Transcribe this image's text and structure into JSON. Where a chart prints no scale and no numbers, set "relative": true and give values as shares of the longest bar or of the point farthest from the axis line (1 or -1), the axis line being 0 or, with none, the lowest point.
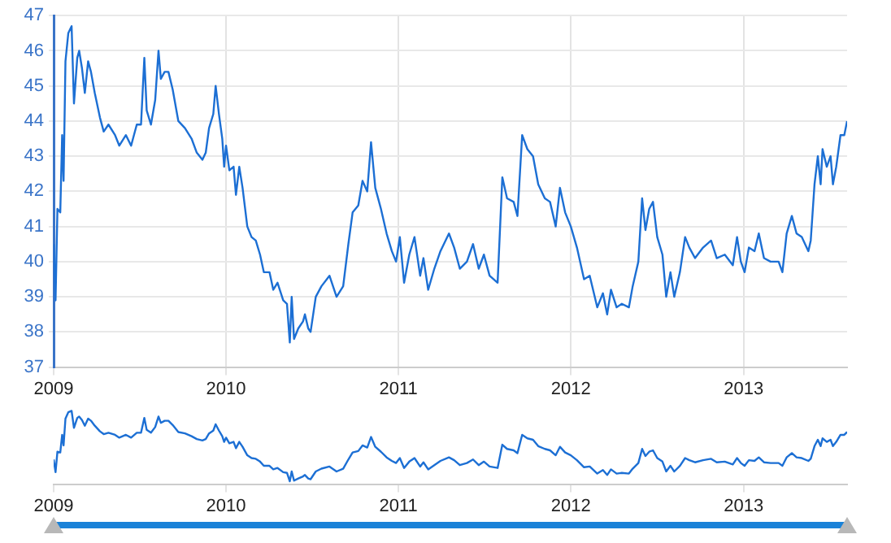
{
  "chart_data": [
    {
      "type": "line",
      "xlim": [
        "2009-01-01",
        "2013-08-08"
      ],
      "ylim": [
        37,
        47
      ],
      "yticks": [
        37,
        38,
        39,
        40,
        41,
        42,
        43,
        44,
        45,
        46,
        47
      ],
      "grid": true,
      "legend": false,
      "marker": "none",
      "xticks": [
        {
          "value": "2009-01-01",
          "label": "2009"
        },
        {
          "value": "2010-01-01",
          "label": "2010"
        },
        {
          "value": "2011-01-01",
          "label": "2011"
        },
        {
          "value": "2012-01-01",
          "label": "2012"
        },
        {
          "value": "2013-01-01",
          "label": "2013"
        }
      ],
      "x": [
        "2009-01-01",
        "2009-01-05",
        "2009-01-09",
        "2009-01-15",
        "2009-01-19",
        "2009-01-22",
        "2009-01-26",
        "2009-02-01",
        "2009-02-08",
        "2009-02-13",
        "2009-02-20",
        "2009-02-24",
        "2009-03-02",
        "2009-03-08",
        "2009-03-15",
        "2009-03-21",
        "2009-03-29",
        "2009-04-09",
        "2009-04-17",
        "2009-04-27",
        "2009-05-11",
        "2009-05-20",
        "2009-06-03",
        "2009-06-14",
        "2009-06-26",
        "2009-07-05",
        "2009-07-12",
        "2009-07-17",
        "2009-07-26",
        "2009-08-04",
        "2009-08-11",
        "2009-08-16",
        "2009-08-24",
        "2009-09-01",
        "2009-09-10",
        "2009-09-22",
        "2009-10-06",
        "2009-10-20",
        "2009-10-31",
        "2009-11-12",
        "2009-11-19",
        "2009-11-26",
        "2009-12-05",
        "2009-12-10",
        "2009-12-17",
        "2009-12-24",
        "2009-12-28",
        "2010-01-01",
        "2010-01-08",
        "2010-01-17",
        "2010-01-22",
        "2010-01-29",
        "2010-02-05",
        "2010-02-15",
        "2010-02-24",
        "2010-03-05",
        "2010-03-14",
        "2010-03-22",
        "2010-04-03",
        "2010-04-11",
        "2010-04-20",
        "2010-05-02",
        "2010-05-10",
        "2010-05-16",
        "2010-05-20",
        "2010-05-25",
        "2010-06-03",
        "2010-06-13",
        "2010-06-17",
        "2010-06-24",
        "2010-06-29",
        "2010-07-10",
        "2010-07-22",
        "2010-08-08",
        "2010-08-23",
        "2010-09-06",
        "2010-09-17",
        "2010-09-26",
        "2010-10-08",
        "2010-10-17",
        "2010-10-27",
        "2010-11-04",
        "2010-11-13",
        "2010-11-25",
        "2010-12-07",
        "2010-12-18",
        "2010-12-27",
        "2011-01-04",
        "2011-01-13",
        "2011-01-24",
        "2011-02-04",
        "2011-02-16",
        "2011-02-23",
        "2011-03-05",
        "2011-03-18",
        "2011-03-31",
        "2011-04-18",
        "2011-04-29",
        "2011-05-11",
        "2011-05-26",
        "2011-06-08",
        "2011-06-20",
        "2011-07-01",
        "2011-07-13",
        "2011-07-30",
        "2011-08-09",
        "2011-08-19",
        "2011-09-02",
        "2011-09-10",
        "2011-09-20",
        "2011-10-01",
        "2011-10-13",
        "2011-10-24",
        "2011-11-07",
        "2011-11-18",
        "2011-11-30",
        "2011-12-09",
        "2011-12-20",
        "2012-01-01",
        "2012-01-14",
        "2012-01-29",
        "2012-02-10",
        "2012-02-26",
        "2012-03-09",
        "2012-03-18",
        "2012-03-26",
        "2012-04-07",
        "2012-04-18",
        "2012-05-03",
        "2012-05-11",
        "2012-05-23",
        "2012-05-31",
        "2012-06-07",
        "2012-06-15",
        "2012-06-23",
        "2012-07-02",
        "2012-07-13",
        "2012-07-21",
        "2012-07-30",
        "2012-08-07",
        "2012-08-19",
        "2012-08-30",
        "2012-09-08",
        "2012-09-20",
        "2012-10-07",
        "2012-10-24",
        "2012-11-05",
        "2012-11-22",
        "2012-12-09",
        "2012-12-18",
        "2012-12-26",
        "2013-01-03",
        "2013-01-12",
        "2013-01-24",
        "2013-02-02",
        "2013-02-13",
        "2013-02-27",
        "2013-03-16",
        "2013-03-24",
        "2013-04-02",
        "2013-04-13",
        "2013-04-23",
        "2013-05-04",
        "2013-05-18",
        "2013-05-23",
        "2013-05-31",
        "2013-06-07",
        "2013-06-13",
        "2013-06-17",
        "2013-06-26",
        "2013-07-04",
        "2013-07-09",
        "2013-07-16",
        "2013-07-25",
        "2013-08-02",
        "2013-08-08"
      ],
      "series": [
        {
          "color": "#1c6fd4",
          "values": [
            40.5,
            38.9,
            41.5,
            41.4,
            43.6,
            42.3,
            45.7,
            46.5,
            46.7,
            44.5,
            45.8,
            46.0,
            45.5,
            44.8,
            45.7,
            45.4,
            44.8,
            44.1,
            43.7,
            43.9,
            43.6,
            43.3,
            43.6,
            43.3,
            43.9,
            43.9,
            45.8,
            44.3,
            43.9,
            44.6,
            46.0,
            45.2,
            45.4,
            45.4,
            44.9,
            44.0,
            43.8,
            43.5,
            43.1,
            42.9,
            43.1,
            43.8,
            44.2,
            45.0,
            44.2,
            43.5,
            42.7,
            43.3,
            42.6,
            42.7,
            41.9,
            42.7,
            42.1,
            41.0,
            40.7,
            40.6,
            40.2,
            39.7,
            39.7,
            39.2,
            39.4,
            38.9,
            38.8,
            37.7,
            39.0,
            37.8,
            38.1,
            38.3,
            38.5,
            38.1,
            38.0,
            39.0,
            39.3,
            39.6,
            39.0,
            39.3,
            40.5,
            41.4,
            41.6,
            42.3,
            42.0,
            43.4,
            42.1,
            41.5,
            40.8,
            40.3,
            40.0,
            40.7,
            39.4,
            40.2,
            40.7,
            39.6,
            40.1,
            39.2,
            39.8,
            40.3,
            40.8,
            40.4,
            39.8,
            40.0,
            40.5,
            39.8,
            40.2,
            39.6,
            39.4,
            42.4,
            41.8,
            41.7,
            41.3,
            43.6,
            43.2,
            43.0,
            42.2,
            41.8,
            41.7,
            41.0,
            42.1,
            41.4,
            41.0,
            40.4,
            39.5,
            39.6,
            38.7,
            39.1,
            38.5,
            39.2,
            38.7,
            38.8,
            38.7,
            39.3,
            40.0,
            41.8,
            40.9,
            41.5,
            41.7,
            40.7,
            40.2,
            39.0,
            39.7,
            39.0,
            39.7,
            40.7,
            40.4,
            40.1,
            40.4,
            40.6,
            40.1,
            40.2,
            39.9,
            40.7,
            40.0,
            39.7,
            40.4,
            40.3,
            40.8,
            40.1,
            40.0,
            40.0,
            39.7,
            40.8,
            41.3,
            40.8,
            40.7,
            40.3,
            40.6,
            42.2,
            43.0,
            42.2,
            43.2,
            42.7,
            43.0,
            42.2,
            42.7,
            43.6,
            43.6,
            44.0
          ]
        }
      ]
    },
    {
      "type": "line",
      "relative": true,
      "xlim": [
        "2009-01-01",
        "2013-08-08"
      ],
      "legend": false,
      "marker": "none",
      "tick_labels": "x",
      "xticks": [
        {
          "value": "2009-01-01",
          "label": "2009"
        },
        {
          "value": "2010-01-01",
          "label": "2010"
        },
        {
          "value": "2011-01-01",
          "label": "2011"
        },
        {
          "value": "2012-01-01",
          "label": "2012"
        },
        {
          "value": "2013-01-01",
          "label": "2013"
        }
      ],
      "x": [
        "2009-01-01",
        "2009-01-05",
        "2009-01-09",
        "2009-01-15",
        "2009-01-19",
        "2009-01-22",
        "2009-01-26",
        "2009-02-01",
        "2009-02-08",
        "2009-02-13",
        "2009-02-20",
        "2009-02-24",
        "2009-03-02",
        "2009-03-08",
        "2009-03-15",
        "2009-03-21",
        "2009-03-29",
        "2009-04-09",
        "2009-04-17",
        "2009-04-27",
        "2009-05-11",
        "2009-05-20",
        "2009-06-03",
        "2009-06-14",
        "2009-06-26",
        "2009-07-05",
        "2009-07-12",
        "2009-07-17",
        "2009-07-26",
        "2009-08-04",
        "2009-08-11",
        "2009-08-16",
        "2009-08-24",
        "2009-09-01",
        "2009-09-10",
        "2009-09-22",
        "2009-10-06",
        "2009-10-20",
        "2009-10-31",
        "2009-11-12",
        "2009-11-19",
        "2009-11-26",
        "2009-12-05",
        "2009-12-10",
        "2009-12-17",
        "2009-12-24",
        "2009-12-28",
        "2010-01-01",
        "2010-01-08",
        "2010-01-17",
        "2010-01-22",
        "2010-01-29",
        "2010-02-05",
        "2010-02-15",
        "2010-02-24",
        "2010-03-05",
        "2010-03-14",
        "2010-03-22",
        "2010-04-03",
        "2010-04-11",
        "2010-04-20",
        "2010-05-02",
        "2010-05-10",
        "2010-05-16",
        "2010-05-20",
        "2010-05-25",
        "2010-06-03",
        "2010-06-13",
        "2010-06-17",
        "2010-06-24",
        "2010-06-29",
        "2010-07-10",
        "2010-07-22",
        "2010-08-08",
        "2010-08-23",
        "2010-09-06",
        "2010-09-17",
        "2010-09-26",
        "2010-10-08",
        "2010-10-17",
        "2010-10-27",
        "2010-11-04",
        "2010-11-13",
        "2010-11-25",
        "2010-12-07",
        "2010-12-18",
        "2010-12-27",
        "2011-01-04",
        "2011-01-13",
        "2011-01-24",
        "2011-02-04",
        "2011-02-16",
        "2011-02-23",
        "2011-03-05",
        "2011-03-18",
        "2011-03-31",
        "2011-04-18",
        "2011-04-29",
        "2011-05-11",
        "2011-05-26",
        "2011-06-08",
        "2011-06-20",
        "2011-07-01",
        "2011-07-13",
        "2011-07-30",
        "2011-08-09",
        "2011-08-19",
        "2011-09-02",
        "2011-09-10",
        "2011-09-20",
        "2011-10-01",
        "2011-10-13",
        "2011-10-24",
        "2011-11-07",
        "2011-11-18",
        "2011-11-30",
        "2011-12-09",
        "2011-12-20",
        "2012-01-01",
        "2012-01-14",
        "2012-01-29",
        "2012-02-10",
        "2012-02-26",
        "2012-03-09",
        "2012-03-18",
        "2012-03-26",
        "2012-04-07",
        "2012-04-18",
        "2012-05-03",
        "2012-05-11",
        "2012-05-23",
        "2012-05-31",
        "2012-06-07",
        "2012-06-15",
        "2012-06-23",
        "2012-07-02",
        "2012-07-13",
        "2012-07-21",
        "2012-07-30",
        "2012-08-07",
        "2012-08-19",
        "2012-08-30",
        "2012-09-08",
        "2012-09-20",
        "2012-10-07",
        "2012-10-24",
        "2012-11-05",
        "2012-11-22",
        "2012-12-09",
        "2012-12-18",
        "2012-12-26",
        "2013-01-03",
        "2013-01-12",
        "2013-01-24",
        "2013-02-02",
        "2013-02-13",
        "2013-02-27",
        "2013-03-16",
        "2013-03-24",
        "2013-04-02",
        "2013-04-13",
        "2013-04-23",
        "2013-05-04",
        "2013-05-18",
        "2013-05-23",
        "2013-05-31",
        "2013-06-07",
        "2013-06-13",
        "2013-06-17",
        "2013-06-26",
        "2013-07-04",
        "2013-07-09",
        "2013-07-16",
        "2013-07-25",
        "2013-08-02",
        "2013-08-08"
      ],
      "series": [
        {
          "color": "#1c6fd4",
          "values": [
            0.31,
            0.13,
            0.42,
            0.41,
            0.66,
            0.51,
            0.89,
            0.98,
            1,
            0.76,
            0.9,
            0.92,
            0.87,
            0.79,
            0.89,
            0.86,
            0.79,
            0.71,
            0.67,
            0.69,
            0.66,
            0.62,
            0.66,
            0.62,
            0.69,
            0.69,
            0.9,
            0.73,
            0.69,
            0.77,
            0.92,
            0.83,
            0.86,
            0.86,
            0.8,
            0.7,
            0.68,
            0.64,
            0.6,
            0.58,
            0.6,
            0.68,
            0.72,
            0.81,
            0.72,
            0.64,
            0.56,
            0.62,
            0.54,
            0.56,
            0.47,
            0.56,
            0.49,
            0.37,
            0.33,
            0.32,
            0.28,
            0.22,
            0.22,
            0.17,
            0.19,
            0.13,
            0.12,
            0,
            0.14,
            0.01,
            0.04,
            0.07,
            0.09,
            0.04,
            0.03,
            0.14,
            0.18,
            0.21,
            0.14,
            0.18,
            0.31,
            0.41,
            0.43,
            0.51,
            0.48,
            0.63,
            0.49,
            0.42,
            0.34,
            0.29,
            0.26,
            0.33,
            0.19,
            0.28,
            0.33,
            0.21,
            0.27,
            0.17,
            0.23,
            0.29,
            0.34,
            0.3,
            0.23,
            0.26,
            0.31,
            0.23,
            0.28,
            0.21,
            0.19,
            0.52,
            0.46,
            0.44,
            0.4,
            0.66,
            0.61,
            0.59,
            0.5,
            0.46,
            0.44,
            0.37,
            0.49,
            0.41,
            0.37,
            0.3,
            0.2,
            0.21,
            0.11,
            0.16,
            0.09,
            0.17,
            0.11,
            0.12,
            0.11,
            0.18,
            0.26,
            0.46,
            0.36,
            0.42,
            0.44,
            0.33,
            0.28,
            0.14,
            0.22,
            0.14,
            0.22,
            0.33,
            0.3,
            0.27,
            0.3,
            0.32,
            0.27,
            0.28,
            0.24,
            0.33,
            0.26,
            0.22,
            0.3,
            0.29,
            0.34,
            0.27,
            0.26,
            0.26,
            0.22,
            0.34,
            0.4,
            0.34,
            0.33,
            0.29,
            0.32,
            0.5,
            0.59,
            0.5,
            0.61,
            0.56,
            0.59,
            0.5,
            0.56,
            0.66,
            0.66,
            0.7
          ]
        }
      ]
    }
  ]
}
